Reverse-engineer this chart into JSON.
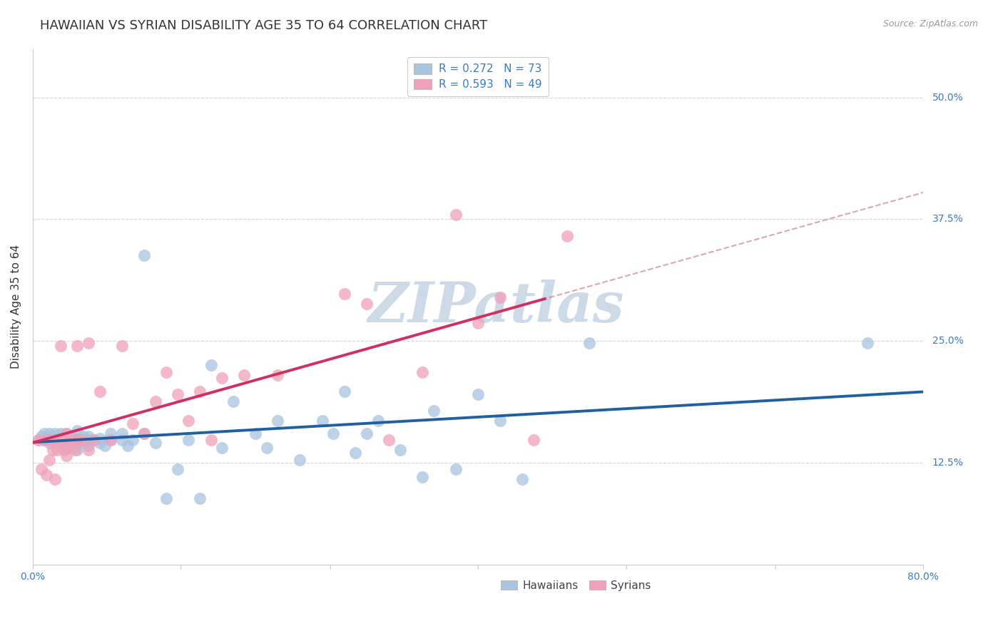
{
  "title": "HAWAIIAN VS SYRIAN DISABILITY AGE 35 TO 64 CORRELATION CHART",
  "source": "Source: ZipAtlas.com",
  "ylabel": "Disability Age 35 to 64",
  "xmin": 0.0,
  "xmax": 0.8,
  "ymin": 0.02,
  "ymax": 0.55,
  "ytick_vals": [
    0.125,
    0.25,
    0.375,
    0.5
  ],
  "ytick_labels": [
    "12.5%",
    "25.0%",
    "37.5%",
    "50.0%"
  ],
  "xtick_vals": [
    0.0,
    0.133,
    0.267,
    0.4,
    0.533,
    0.667,
    0.8
  ],
  "xtick_labels": [
    "0.0%",
    "",
    "",
    "",
    "",
    "",
    "80.0%"
  ],
  "hawaiian_R": "0.272",
  "hawaiian_N": "73",
  "syrian_R": "0.593",
  "syrian_N": "49",
  "hawaiian_dot_color": "#a8c4e0",
  "hawaiian_line_color": "#2060a0",
  "syrian_dot_color": "#f0a0b8",
  "syrian_line_color": "#d03060",
  "dashed_line_color": "#d08090",
  "accent_color": "#3a7ac4",
  "grid_color": "#d0d0d0",
  "watermark_color": "#ccdae8",
  "bg_color": "#ffffff",
  "title_color": "#333333",
  "source_color": "#999999",
  "hawaiian_x": [
    0.005,
    0.008,
    0.01,
    0.01,
    0.012,
    0.015,
    0.015,
    0.018,
    0.02,
    0.02,
    0.02,
    0.022,
    0.025,
    0.025,
    0.025,
    0.028,
    0.03,
    0.03,
    0.03,
    0.03,
    0.035,
    0.035,
    0.038,
    0.04,
    0.04,
    0.04,
    0.04,
    0.042,
    0.045,
    0.045,
    0.048,
    0.05,
    0.05,
    0.05,
    0.055,
    0.06,
    0.06,
    0.065,
    0.07,
    0.07,
    0.08,
    0.08,
    0.085,
    0.09,
    0.1,
    0.1,
    0.11,
    0.12,
    0.13,
    0.14,
    0.15,
    0.16,
    0.17,
    0.18,
    0.2,
    0.21,
    0.22,
    0.24,
    0.26,
    0.27,
    0.28,
    0.29,
    0.3,
    0.31,
    0.33,
    0.35,
    0.36,
    0.38,
    0.4,
    0.42,
    0.44,
    0.5,
    0.75
  ],
  "hawaiian_y": [
    0.148,
    0.152,
    0.148,
    0.155,
    0.15,
    0.145,
    0.155,
    0.15,
    0.148,
    0.152,
    0.155,
    0.148,
    0.145,
    0.15,
    0.155,
    0.148,
    0.14,
    0.145,
    0.15,
    0.155,
    0.148,
    0.152,
    0.145,
    0.138,
    0.145,
    0.15,
    0.158,
    0.148,
    0.145,
    0.152,
    0.148,
    0.142,
    0.148,
    0.152,
    0.148,
    0.145,
    0.15,
    0.142,
    0.148,
    0.155,
    0.148,
    0.155,
    0.142,
    0.148,
    0.338,
    0.155,
    0.145,
    0.088,
    0.118,
    0.148,
    0.088,
    0.225,
    0.14,
    0.188,
    0.155,
    0.14,
    0.168,
    0.128,
    0.168,
    0.155,
    0.198,
    0.135,
    0.155,
    0.168,
    0.138,
    0.11,
    0.178,
    0.118,
    0.195,
    0.168,
    0.108,
    0.248,
    0.248
  ],
  "syrian_x": [
    0.005,
    0.008,
    0.01,
    0.012,
    0.015,
    0.015,
    0.018,
    0.02,
    0.02,
    0.022,
    0.025,
    0.025,
    0.028,
    0.03,
    0.03,
    0.03,
    0.032,
    0.035,
    0.038,
    0.04,
    0.04,
    0.042,
    0.045,
    0.05,
    0.05,
    0.055,
    0.06,
    0.07,
    0.08,
    0.09,
    0.1,
    0.11,
    0.12,
    0.13,
    0.14,
    0.15,
    0.16,
    0.17,
    0.19,
    0.22,
    0.28,
    0.3,
    0.32,
    0.35,
    0.38,
    0.4,
    0.42,
    0.45,
    0.48
  ],
  "syrian_y": [
    0.148,
    0.118,
    0.148,
    0.112,
    0.128,
    0.148,
    0.138,
    0.108,
    0.148,
    0.138,
    0.148,
    0.245,
    0.138,
    0.132,
    0.148,
    0.155,
    0.142,
    0.148,
    0.138,
    0.148,
    0.245,
    0.148,
    0.148,
    0.138,
    0.248,
    0.148,
    0.198,
    0.148,
    0.245,
    0.165,
    0.155,
    0.188,
    0.218,
    0.195,
    0.168,
    0.198,
    0.148,
    0.212,
    0.215,
    0.215,
    0.298,
    0.288,
    0.148,
    0.218,
    0.38,
    0.268,
    0.295,
    0.148,
    0.358
  ],
  "syrian_line_xmax": 0.46,
  "dashed_line_xmin": 0.43
}
